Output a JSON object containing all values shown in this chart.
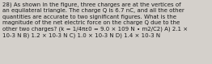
{
  "text": "28) As shown in the figure, three charges are at the vertices of\nan equilateral triangle. The charge Q is 6.7 nC, and all the other\nquantities are accurate to two significant figures. What is the\nmagnitude of the net electric force on the charge Q due to the\nother two charges? (k = 1/4πε0 = 9.0 × 109 N ∙ m2/C2) A) 2.1 ×\n10-3 N B) 1.2 × 10-3 N C) 1.0 × 10-3 N D) 1.4 × 10-3 N",
  "background_color": "#d4d0cb",
  "text_color": "#1a1a1a",
  "font_size": 5.0,
  "font_family": "DejaVu Sans"
}
